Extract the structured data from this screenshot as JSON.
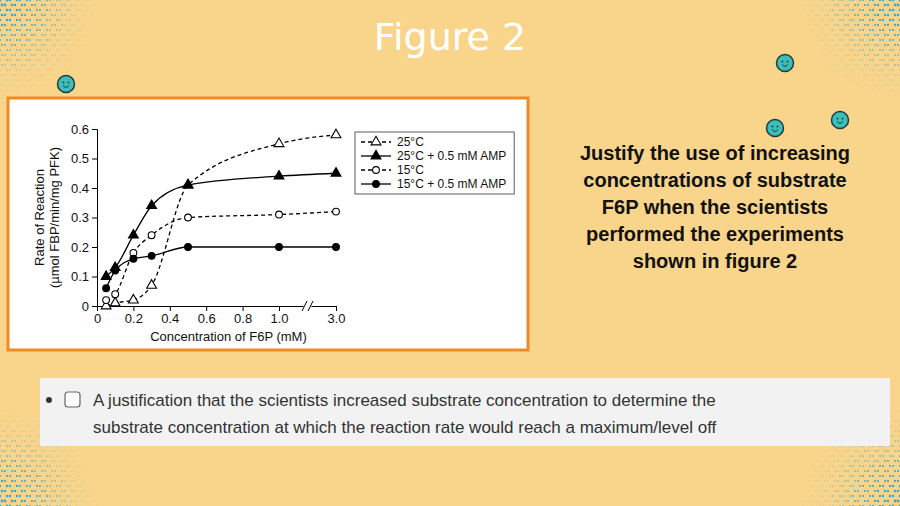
{
  "slide": {
    "heading": "Figure 2",
    "question_lines": [
      "Justify the use of increasing",
      "concentrations of substrate",
      "F6P when the scientists",
      "performed the experiments",
      "shown in figure 2"
    ],
    "rubric_lines": [
      "A justification that the scientists increased substrate concentration to determine the",
      "substrate concentration at which the reaction rate would reach a maximum/level off"
    ]
  },
  "chart_data": {
    "type": "line",
    "xlabel": "Concentration of F6P (mM)",
    "ylabel": [
      "Rate of Reaction",
      "(µmol FBP/min/mg PFK)"
    ],
    "x": [
      0.05,
      0.1,
      0.2,
      0.3,
      0.5,
      1.0,
      3.0
    ],
    "series": [
      {
        "name": "25°C",
        "color": "#000000",
        "marker": "triangle-open",
        "line_style": "dashed",
        "values": [
          0.0,
          0.01,
          0.02,
          0.07,
          0.41,
          0.55,
          0.58
        ]
      },
      {
        "name": "25°C + 0.5 mM AMP",
        "color": "#000000",
        "marker": "triangle",
        "line_style": "solid",
        "values": [
          0.1,
          0.13,
          0.24,
          0.34,
          0.41,
          0.44,
          0.45
        ]
      },
      {
        "name": "15°C",
        "color": "#000000",
        "marker": "circle-open",
        "line_style": "dashed",
        "values": [
          0.02,
          0.04,
          0.18,
          0.24,
          0.3,
          0.31,
          0.32
        ]
      },
      {
        "name": "15°C + 0.5 mM AMP",
        "color": "#000000",
        "marker": "circle",
        "line_style": "solid",
        "values": [
          0.06,
          0.12,
          0.16,
          0.17,
          0.2,
          0.2,
          0.2
        ]
      }
    ],
    "xlim": [
      0,
      3.0
    ],
    "xticks": [
      0,
      0.2,
      0.4,
      0.6,
      0.8,
      {
        "value": 1.0,
        "label": "1.0"
      },
      {
        "value": 3.0,
        "label": "3.0"
      }
    ],
    "ylim": [
      0,
      0.6
    ],
    "yticks": [
      0,
      0.1,
      0.2,
      0.3,
      0.4,
      0.5,
      0.6
    ],
    "grid": false,
    "legend": "right"
  }
}
